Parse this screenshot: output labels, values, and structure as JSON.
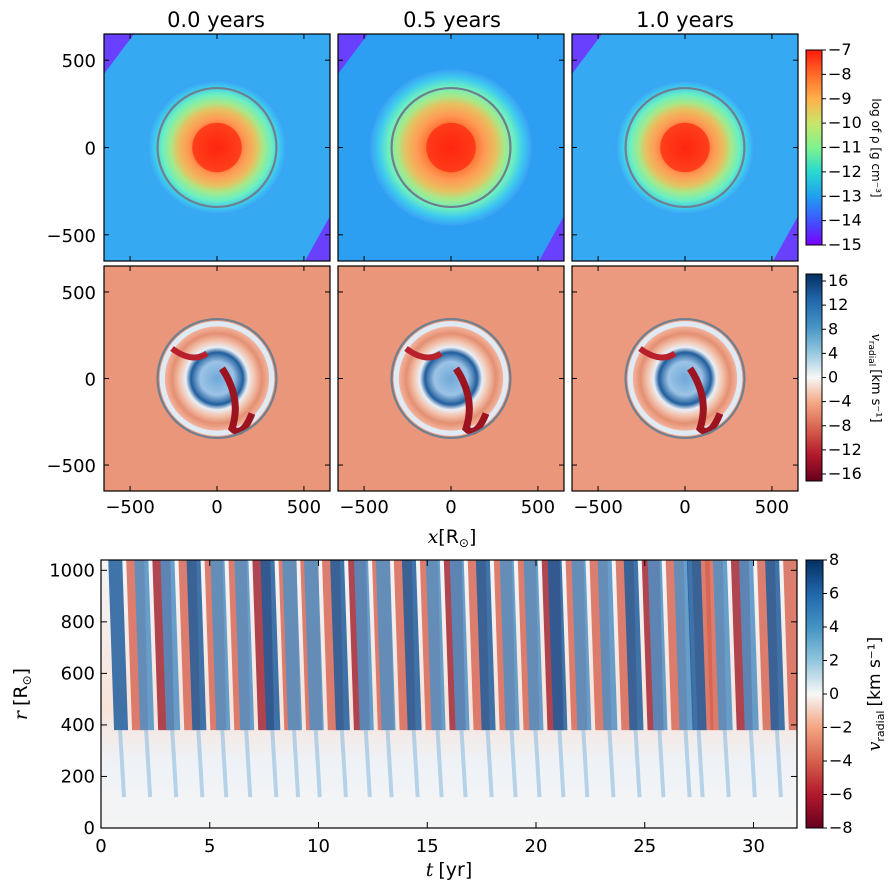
{
  "chart_data": [
    {
      "type": "heatmap",
      "panel": "density",
      "titles": [
        "0.0 years",
        "0.5 years",
        "1.0 years"
      ],
      "colorbar_label": "log of ρ [g cm⁻³]",
      "colorbar_ticks": [
        "−7",
        "−8",
        "−9",
        "−10",
        "−11",
        "−12",
        "−13",
        "−14",
        "−15"
      ],
      "clim": [
        -15,
        -7
      ],
      "colormap": "rainbow",
      "y_ticks": [
        "500",
        "0",
        "−500"
      ],
      "xlim": [
        -650,
        650
      ],
      "ylim": [
        -650,
        650
      ],
      "circle_radius": 360,
      "circle_color": "#6e7f8f"
    },
    {
      "type": "heatmap",
      "panel": "radial-velocity-slices",
      "colorbar_label_sym": "v",
      "colorbar_label_sub": "radial",
      "colorbar_label_unit": "[km s⁻¹]",
      "colorbar_ticks": [
        "16",
        "12",
        "8",
        "4",
        "0",
        "−4",
        "−8",
        "−12",
        "−16"
      ],
      "clim": [
        -16,
        16
      ],
      "colormap": "RdBu",
      "x_ticks": [
        "−500",
        "0",
        "500"
      ],
      "y_ticks": [
        "500",
        "0",
        "−500"
      ],
      "xlabel_sym": "x",
      "xlabel_unit": "[R",
      "xlabel_sub": "⊙",
      "xlabel_close": "]",
      "xlim": [
        -650,
        650
      ],
      "ylim": [
        -650,
        650
      ]
    },
    {
      "type": "heatmap",
      "panel": "radial-velocity-time",
      "x_ticks": [
        "0",
        "5",
        "10",
        "15",
        "20",
        "25",
        "30"
      ],
      "y_ticks": [
        "1000",
        "800",
        "600",
        "400",
        "200",
        "0"
      ],
      "xlim": [
        0,
        32
      ],
      "ylim": [
        0,
        1040
      ],
      "xlabel_sym": "t",
      "xlabel_unit": "[yr]",
      "ylabel_sym": "r",
      "ylabel_unit": "[R",
      "ylabel_sub": "⊙",
      "ylabel_close": "]",
      "colorbar_label_sym": "v",
      "colorbar_label_sub": "radial",
      "colorbar_label_unit": "[km s⁻¹]",
      "colorbar_ticks": [
        "8",
        "6",
        "4",
        "2",
        "0",
        "−2",
        "−4",
        "−6",
        "−8"
      ],
      "clim": [
        -8,
        8
      ],
      "colormap": "RdBu",
      "pulse_times": [
        0.6,
        1.8,
        3.0,
        4.2,
        5.3,
        6.4,
        7.6,
        8.6,
        9.6,
        10.8,
        11.9,
        12.9,
        14.1,
        15.2,
        16.3,
        17.5,
        18.6,
        19.7,
        20.8,
        21.9,
        23.1,
        24.3,
        25.4,
        26.6,
        27.2,
        28.4,
        29.6,
        30.8
      ]
    }
  ]
}
